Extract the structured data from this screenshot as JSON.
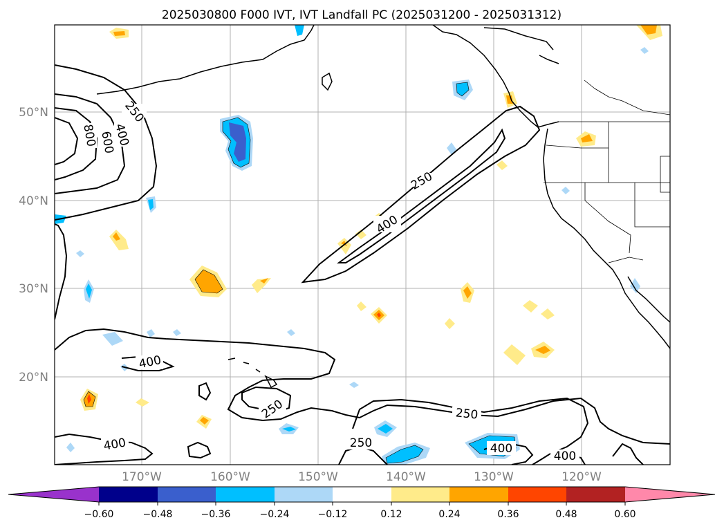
{
  "title": "2025030800 F000 IVT, IVT Landfall PC (2025031200 - 2025031312)",
  "lat_ticks": [
    "50°N",
    "40°N",
    "30°N",
    "20°N"
  ],
  "lon_ticks": [
    "170°W",
    "160°W",
    "150°W",
    "140°W",
    "130°W",
    "120°W"
  ],
  "contour_labels": {
    "c250_nw": "250",
    "c400_nw": "400",
    "c600_nw": "600",
    "c800_nw": "800",
    "c250_ar": "250",
    "c400_ar": "400",
    "c400_w": "400",
    "c250_s1": "250",
    "c250_s2": "250",
    "c250_s3": "250",
    "c400_sw": "400",
    "c400_se1": "400",
    "c400_se2": "400"
  },
  "colorbar": {
    "ticks": [
      "−0.60",
      "−0.48",
      "−0.36",
      "−0.24",
      "−0.12",
      "0.12",
      "0.24",
      "0.36",
      "0.48",
      "0.60"
    ],
    "colors": [
      "#9932cc",
      "#00008b",
      "#3a5fcd",
      "#00bfff",
      "#add8f7",
      "#ffffff",
      "#ffeb8a",
      "#ffa500",
      "#ff4500",
      "#b22222",
      "#ff88aa"
    ]
  },
  "colors": {
    "neg_light": "#add8f7",
    "neg_mid": "#00bfff",
    "neg_dark": "#3a5fcd",
    "pos_light": "#ffeb8a",
    "pos_mid": "#ffa500",
    "pos_dark": "#ff4500"
  }
}
